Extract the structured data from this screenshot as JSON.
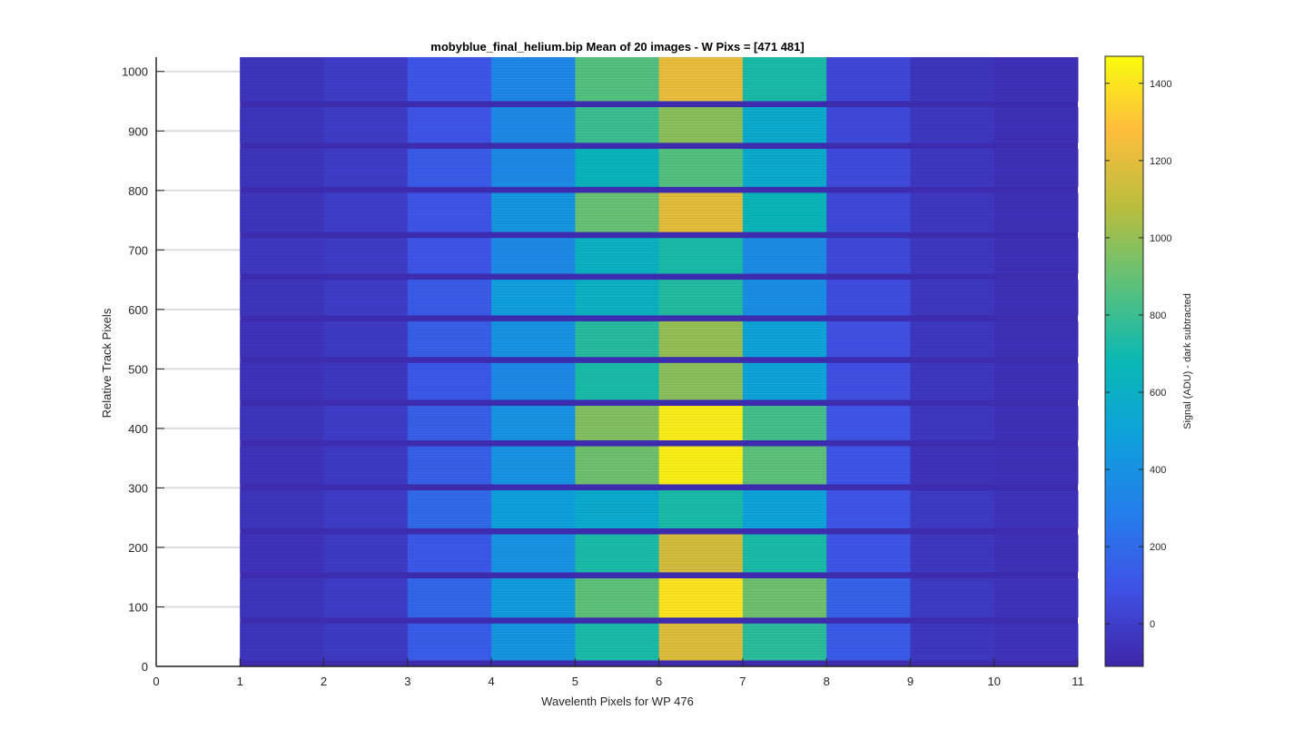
{
  "chart_data": {
    "type": "heatmap",
    "title": "mobyblue_final_helium.bip  Mean of 20 images - W Pixs = [471  481]",
    "xlabel": "Wavelenth Pixels for WP 476",
    "ylabel": "Relative Track Pixels",
    "xlim": [
      0,
      11
    ],
    "ylim": [
      0,
      1024
    ],
    "xticks": [
      "0",
      "1",
      "2",
      "3",
      "4",
      "5",
      "6",
      "7",
      "8",
      "9",
      "10",
      "11"
    ],
    "yticks": [
      "0",
      "100",
      "200",
      "300",
      "400",
      "500",
      "600",
      "700",
      "800",
      "900",
      "1000"
    ],
    "grid": "y-major",
    "columns": [
      1,
      2,
      3,
      4,
      5,
      6,
      7,
      8,
      9,
      10
    ],
    "bands": [
      {
        "y0": 10,
        "y1": 72,
        "values": [
          -40,
          -20,
          140,
          420,
          720,
          1180,
          760,
          130,
          -30,
          -50
        ]
      },
      {
        "y0": 82,
        "y1": 148,
        "values": [
          -40,
          -10,
          180,
          450,
          880,
          1400,
          920,
          160,
          -20,
          -50
        ]
      },
      {
        "y0": 158,
        "y1": 222,
        "values": [
          -50,
          -20,
          120,
          400,
          720,
          1150,
          720,
          110,
          -30,
          -60
        ]
      },
      {
        "y0": 232,
        "y1": 296,
        "values": [
          -40,
          -10,
          200,
          480,
          560,
          720,
          500,
          100,
          -20,
          -50
        ]
      },
      {
        "y0": 306,
        "y1": 370,
        "values": [
          -50,
          -20,
          150,
          400,
          920,
          1430,
          880,
          110,
          -50,
          -60
        ]
      },
      {
        "y0": 380,
        "y1": 438,
        "values": [
          -40,
          -10,
          150,
          400,
          960,
          1420,
          820,
          100,
          -30,
          -60
        ]
      },
      {
        "y0": 448,
        "y1": 510,
        "values": [
          -50,
          -30,
          120,
          350,
          720,
          980,
          500,
          80,
          -30,
          -60
        ]
      },
      {
        "y0": 520,
        "y1": 580,
        "values": [
          -50,
          -20,
          150,
          400,
          750,
          1000,
          500,
          80,
          -30,
          -60
        ]
      },
      {
        "y0": 590,
        "y1": 650,
        "values": [
          -40,
          -10,
          130,
          470,
          620,
          740,
          380,
          70,
          -30,
          -60
        ]
      },
      {
        "y0": 660,
        "y1": 720,
        "values": [
          -30,
          -10,
          100,
          350,
          620,
          720,
          360,
          50,
          -30,
          -60
        ]
      },
      {
        "y0": 730,
        "y1": 796,
        "values": [
          -40,
          0,
          100,
          420,
          900,
          1200,
          650,
          50,
          -30,
          -60
        ]
      },
      {
        "y0": 806,
        "y1": 870,
        "values": [
          -40,
          -10,
          130,
          350,
          640,
          860,
          560,
          60,
          -30,
          -60
        ]
      },
      {
        "y0": 880,
        "y1": 940,
        "values": [
          -40,
          -10,
          100,
          350,
          800,
          980,
          560,
          50,
          -30,
          -60
        ]
      },
      {
        "y0": 950,
        "y1": 1024,
        "values": [
          -40,
          -10,
          110,
          340,
          860,
          1220,
          720,
          40,
          -40,
          -60
        ]
      }
    ],
    "gap_value": -80,
    "colorbar": {
      "label": "Signal (ADU) - dark subtracted",
      "min": -110,
      "max": 1470,
      "ticks": [
        "0",
        "200",
        "400",
        "600",
        "800",
        "1000",
        "1200",
        "1400"
      ],
      "colormap": "parula"
    }
  }
}
